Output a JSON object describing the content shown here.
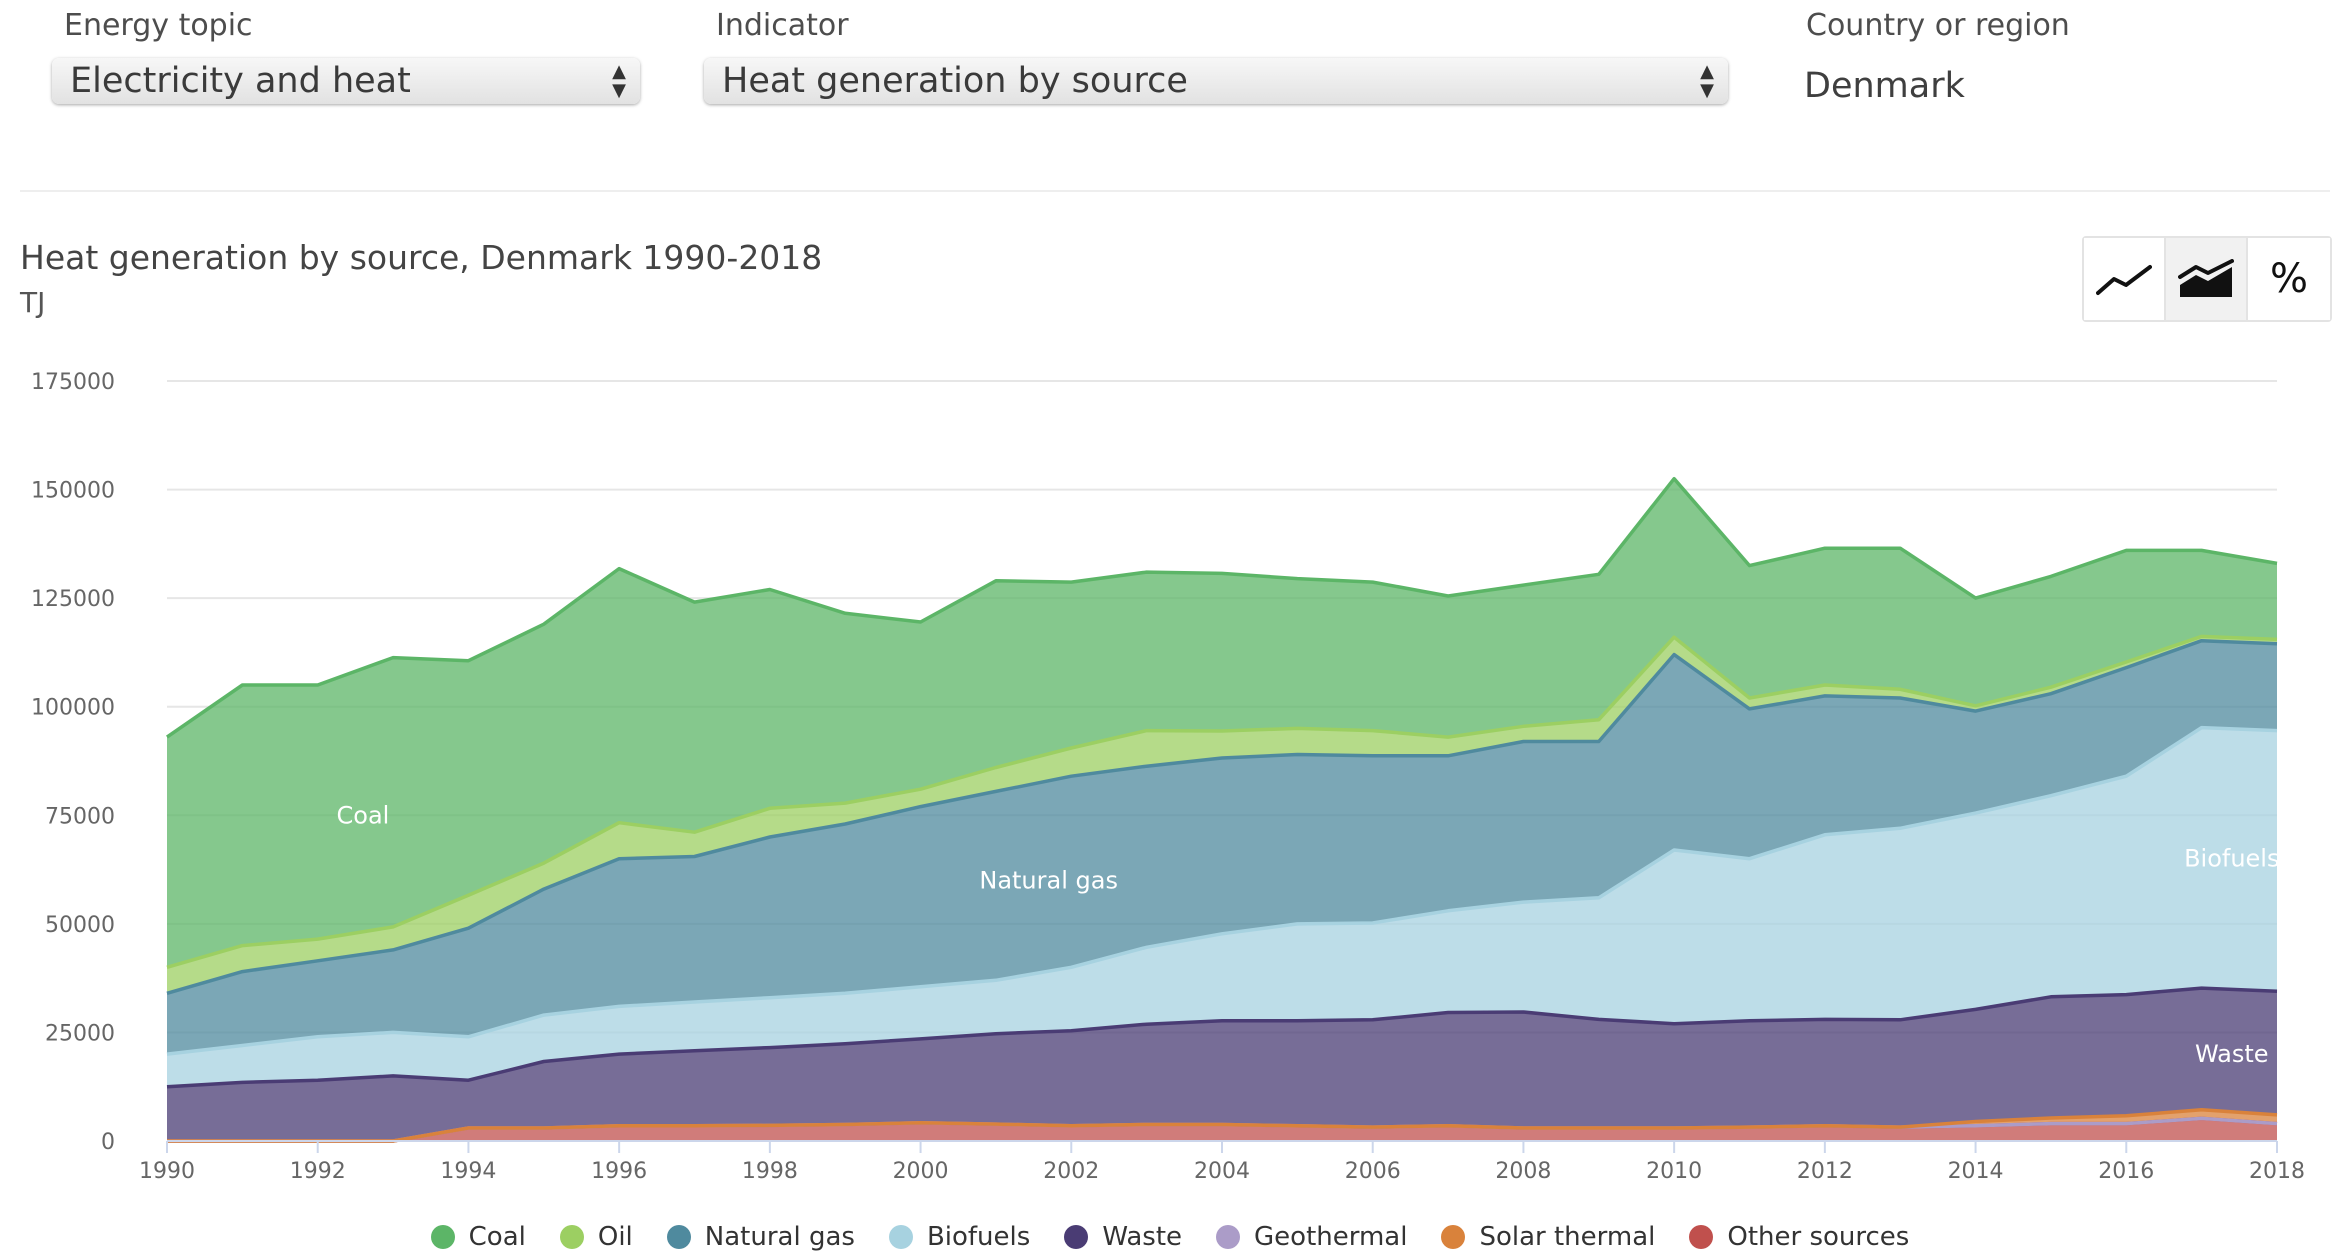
{
  "controls": {
    "topic": {
      "label": "Energy topic",
      "value": "Electricity and heat"
    },
    "indicator": {
      "label": "Indicator",
      "value": "Heat generation by source"
    },
    "country": {
      "label": "Country or region",
      "value": "Denmark"
    },
    "modes": [
      {
        "name": "line",
        "icon": "line-chart-icon",
        "active": false
      },
      {
        "name": "stacked area",
        "icon": "stacked-area-icon",
        "active": true
      },
      {
        "name": "percent",
        "icon": "percent-icon",
        "label": "%",
        "active": false
      }
    ]
  },
  "chart_data": {
    "type": "area",
    "stacked": true,
    "title": "Heat generation by source, Denmark 1990-2018",
    "unit": "TJ",
    "x": [
      1990,
      1991,
      1992,
      1993,
      1994,
      1995,
      1996,
      1997,
      1998,
      1999,
      2000,
      2001,
      2002,
      2003,
      2004,
      2005,
      2006,
      2007,
      2008,
      2009,
      2010,
      2011,
      2012,
      2013,
      2014,
      2015,
      2016,
      2017,
      2018
    ],
    "x_ticks": [
      1990,
      1992,
      1994,
      1996,
      1998,
      2000,
      2002,
      2004,
      2006,
      2008,
      2010,
      2012,
      2014,
      2016,
      2018
    ],
    "y_ticks": [
      0,
      25000,
      50000,
      75000,
      100000,
      125000,
      150000,
      175000
    ],
    "ylim": [
      0,
      175000
    ],
    "grid": true,
    "legend_position": "bottom",
    "series": [
      {
        "name": "Other sources",
        "color": "#c0504d",
        "values": [
          0,
          0,
          0,
          0,
          3000,
          3000,
          3500,
          3500,
          3600,
          3800,
          4200,
          3900,
          3500,
          3800,
          3800,
          3500,
          3200,
          3500,
          3000,
          3000,
          3000,
          3200,
          3500,
          3200,
          3500,
          4000,
          4000,
          5200,
          4000
        ]
      },
      {
        "name": "Geothermal",
        "color": "#ab9cc8",
        "values": [
          0,
          0,
          0,
          0,
          0,
          0,
          0,
          0,
          0,
          0,
          0,
          0,
          0,
          0,
          0,
          0,
          0,
          0,
          0,
          0,
          0,
          0,
          0,
          0,
          0,
          0,
          0,
          0,
          0
        ]
      },
      {
        "name": "Solar thermal",
        "color": "#d9823b",
        "values": [
          0,
          0,
          0,
          0,
          0,
          0,
          0,
          0,
          0,
          0,
          0,
          0,
          0,
          0,
          0,
          0,
          0,
          0,
          0,
          0,
          0,
          0,
          0,
          0,
          1000,
          1300,
          1800,
          2000,
          2000
        ]
      },
      {
        "name": "Waste",
        "color": "#4a3c74",
        "values": [
          12500,
          13500,
          14000,
          15000,
          11000,
          15300,
          16500,
          17300,
          17900,
          18600,
          19300,
          20800,
          21900,
          23100,
          23900,
          24200,
          24700,
          26100,
          26700,
          25000,
          24000,
          24500,
          24500,
          24700,
          25800,
          27900,
          27900,
          28000,
          28500
        ]
      },
      {
        "name": "Biofuels",
        "color": "#a7d2e0",
        "values": [
          7500,
          8500,
          10000,
          10000,
          10000,
          10700,
          11000,
          11200,
          11500,
          11600,
          12000,
          12300,
          14600,
          17700,
          20000,
          22300,
          22300,
          23400,
          25300,
          28000,
          40000,
          37300,
          42500,
          44100,
          45200,
          46300,
          50300,
          60000,
          60000
        ]
      },
      {
        "name": "Natural gas",
        "color": "#4f8a9e",
        "values": [
          14000,
          17000,
          17500,
          19000,
          25000,
          29000,
          34000,
          33500,
          37000,
          39000,
          41500,
          43500,
          44000,
          41700,
          40500,
          39000,
          38500,
          35700,
          37000,
          36000,
          45000,
          34500,
          32000,
          30000,
          23500,
          23500,
          25000,
          20000,
          20000
        ]
      },
      {
        "name": "Oil",
        "color": "#9ccf62",
        "values": [
          6000,
          6000,
          5000,
          5300,
          7600,
          6000,
          8300,
          5600,
          6600,
          4800,
          4000,
          5500,
          6500,
          8200,
          6200,
          6000,
          5800,
          4300,
          3500,
          5000,
          4000,
          2500,
          2500,
          2000,
          1200,
          1500,
          1300,
          1000,
          1000
        ]
      },
      {
        "name": "Coal",
        "color": "#5cb567",
        "values": [
          53000,
          60000,
          58500,
          62000,
          54000,
          55000,
          58500,
          53000,
          50400,
          43700,
          38500,
          43000,
          38200,
          36500,
          36300,
          34500,
          34200,
          32500,
          32500,
          33500,
          36500,
          30500,
          31500,
          32500,
          24800,
          25500,
          25700,
          19800,
          17500
        ]
      }
    ],
    "legend_order": [
      "Coal",
      "Oil",
      "Natural gas",
      "Biofuels",
      "Waste",
      "Geothermal",
      "Solar thermal",
      "Other sources"
    ],
    "annotations": [
      "Coal",
      "Natural gas",
      "Biofuels",
      "Waste"
    ]
  }
}
